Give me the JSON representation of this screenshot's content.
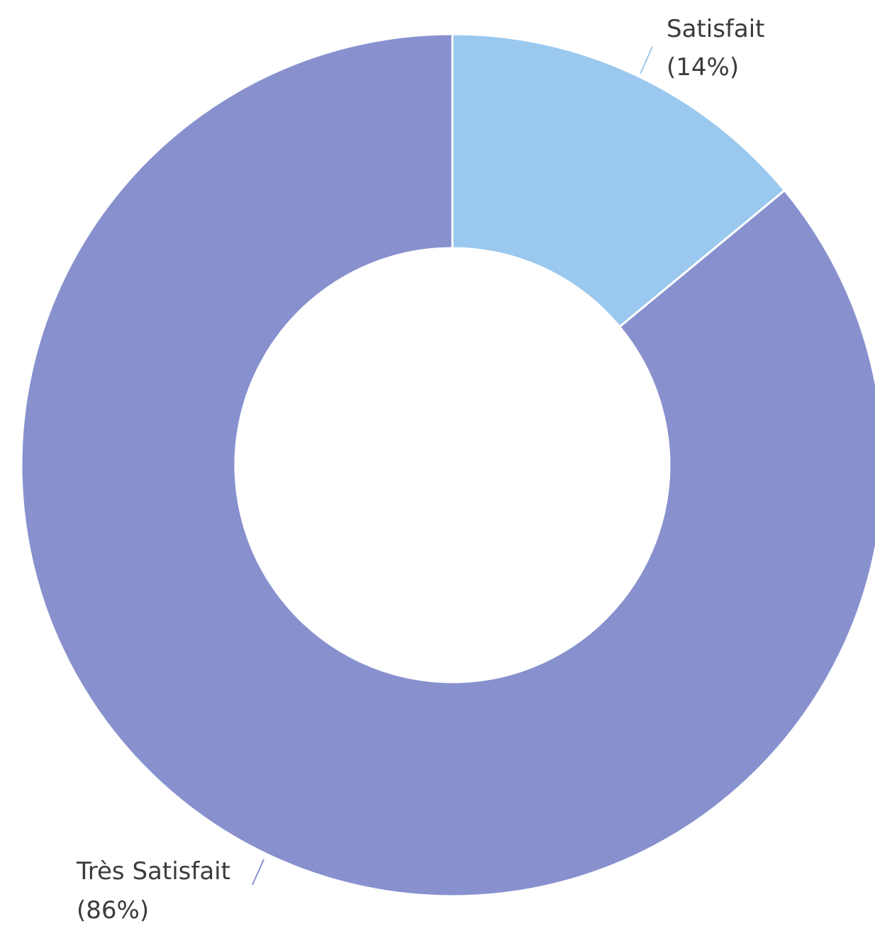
{
  "chart_data": {
    "type": "pie",
    "style": "donut",
    "slices": [
      {
        "label": "Satisfait",
        "value": 14,
        "percent_label": "(14%)",
        "color": "#9ac8ee"
      },
      {
        "label": "Très Satisfait",
        "value": 86,
        "percent_label": "(86%)",
        "color": "#8891ce"
      }
    ],
    "unit": "%",
    "legend": "none",
    "labels_outside_with_leader_lines": true,
    "start_angle_deg": 0,
    "direction": "clockwise"
  }
}
